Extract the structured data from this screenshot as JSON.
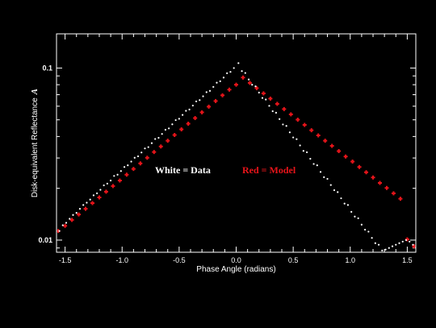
{
  "chart_data": {
    "type": "scatter",
    "xlabel": "Phase Angle (radians)",
    "ylabel": "Disk-equivalent Reflectance",
    "ylabel_symbol": "A",
    "xlim": [
      -1.575,
      1.575
    ],
    "ylim": [
      0.0085,
      0.158
    ],
    "yscale": "log",
    "x_ticks": [
      {
        "value": -1.5,
        "label": "-1.5"
      },
      {
        "value": -1.0,
        "label": "-1.0"
      },
      {
        "value": -0.5,
        "label": "-0.5"
      },
      {
        "value": 0.0,
        "label": "0.0"
      },
      {
        "value": 0.5,
        "label": "0.5"
      },
      {
        "value": 1.0,
        "label": "1.0"
      },
      {
        "value": 1.5,
        "label": "1.5"
      }
    ],
    "y_ticks": [
      {
        "value": 0.1,
        "label": "0.1"
      },
      {
        "value": 0.01,
        "label": "0.01"
      }
    ],
    "legend": {
      "data_label": "White = Data",
      "model_label": "Red = Model",
      "placement": "center"
    },
    "colors": {
      "data": "#ffffff",
      "model": "#e8141a",
      "frame": "#ffffff",
      "background": "#000000"
    },
    "series": [
      {
        "name": "Data",
        "x": [
          -1.55,
          -1.52,
          -1.49,
          -1.46,
          -1.43,
          -1.4,
          -1.37,
          -1.34,
          -1.31,
          -1.28,
          -1.25,
          -1.22,
          -1.19,
          -1.16,
          -1.13,
          -1.1,
          -1.07,
          -1.04,
          -1.01,
          -0.98,
          -0.95,
          -0.92,
          -0.89,
          -0.86,
          -0.83,
          -0.8,
          -0.77,
          -0.74,
          -0.71,
          -0.68,
          -0.65,
          -0.62,
          -0.59,
          -0.56,
          -0.53,
          -0.5,
          -0.47,
          -0.44,
          -0.41,
          -0.38,
          -0.35,
          -0.32,
          -0.29,
          -0.26,
          -0.23,
          -0.2,
          -0.17,
          -0.14,
          -0.11,
          -0.08,
          -0.05,
          -0.02,
          0.02,
          0.05,
          0.08,
          0.11,
          0.14,
          0.17,
          0.2,
          0.23,
          0.26,
          0.29,
          0.32,
          0.35,
          0.38,
          0.41,
          0.44,
          0.47,
          0.5,
          0.53,
          0.56,
          0.59,
          0.62,
          0.65,
          0.68,
          0.71,
          0.74,
          0.77,
          0.8,
          0.83,
          0.86,
          0.89,
          0.92,
          0.95,
          0.98,
          1.01,
          1.04,
          1.07,
          1.1,
          1.13,
          1.16,
          1.19,
          1.22,
          1.25,
          1.28,
          1.31,
          1.34,
          1.37,
          1.4,
          1.43,
          1.46,
          1.49,
          1.52,
          1.55
        ],
        "y": [
          0.0113,
          0.0122,
          0.0126,
          0.0133,
          0.014,
          0.0144,
          0.0152,
          0.016,
          0.0165,
          0.0172,
          0.0182,
          0.0187,
          0.0196,
          0.0208,
          0.0213,
          0.0222,
          0.0236,
          0.024,
          0.0252,
          0.0266,
          0.0272,
          0.0286,
          0.0301,
          0.0307,
          0.0323,
          0.0341,
          0.0347,
          0.0366,
          0.0387,
          0.0393,
          0.0414,
          0.0438,
          0.0446,
          0.0471,
          0.0498,
          0.0507,
          0.0534,
          0.0564,
          0.0574,
          0.0605,
          0.064,
          0.0651,
          0.0685,
          0.0724,
          0.0737,
          0.0777,
          0.0822,
          0.0838,
          0.088,
          0.0933,
          0.095,
          0.1,
          0.1068,
          0.096,
          0.0936,
          0.0858,
          0.08,
          0.0783,
          0.072,
          0.067,
          0.0656,
          0.0603,
          0.0561,
          0.055,
          0.0505,
          0.047,
          0.0461,
          0.0423,
          0.0395,
          0.0386,
          0.0355,
          0.033,
          0.0324,
          0.0297,
          0.0277,
          0.0272,
          0.0249,
          0.0232,
          0.0227,
          0.0209,
          0.0195,
          0.019,
          0.0175,
          0.0163,
          0.016,
          0.0146,
          0.0137,
          0.0134,
          0.0123,
          0.0115,
          0.0112,
          0.0103,
          0.0096,
          0.0094,
          0.0087,
          0.0088,
          0.009,
          0.0092,
          0.0094,
          0.0096,
          0.0098,
          0.01,
          0.0098,
          0.0094
        ]
      },
      {
        "name": "Model",
        "x": [
          -1.56,
          -1.5,
          -1.44,
          -1.38,
          -1.32,
          -1.26,
          -1.2,
          -1.14,
          -1.08,
          -1.02,
          -0.96,
          -0.9,
          -0.84,
          -0.78,
          -0.72,
          -0.66,
          -0.6,
          -0.54,
          -0.48,
          -0.42,
          -0.36,
          -0.3,
          -0.24,
          -0.18,
          -0.12,
          -0.06,
          0.0,
          0.06,
          0.12,
          0.18,
          0.24,
          0.3,
          0.36,
          0.42,
          0.48,
          0.54,
          0.6,
          0.66,
          0.72,
          0.78,
          0.84,
          0.9,
          0.96,
          1.02,
          1.08,
          1.14,
          1.2,
          1.26,
          1.32,
          1.38,
          1.44,
          1.5,
          1.56
        ],
        "y": [
          0.0113,
          0.0121,
          0.0131,
          0.0141,
          0.0152,
          0.0164,
          0.0177,
          0.0191,
          0.0206,
          0.0222,
          0.024,
          0.0259,
          0.0279,
          0.0301,
          0.0325,
          0.035,
          0.0378,
          0.0408,
          0.044,
          0.0475,
          0.0512,
          0.0553,
          0.0596,
          0.0643,
          0.0694,
          0.0749,
          0.08,
          0.088,
          0.082,
          0.0764,
          0.0712,
          0.0664,
          0.0619,
          0.0577,
          0.0538,
          0.0501,
          0.0467,
          0.0435,
          0.0406,
          0.0378,
          0.0353,
          0.0329,
          0.0306,
          0.0286,
          0.0266,
          0.0248,
          0.0231,
          0.0215,
          0.0201,
          0.0187,
          0.0174,
          0.0101,
          0.0092
        ]
      }
    ]
  }
}
